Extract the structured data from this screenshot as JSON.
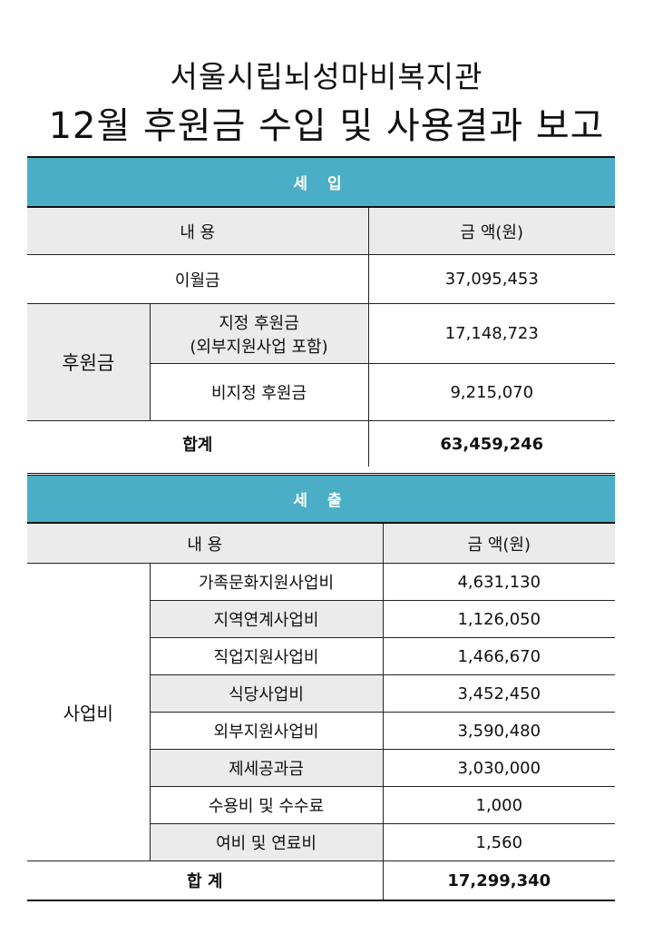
{
  "title": {
    "line1": "서울시립뇌성마비복지관",
    "line2": "12월 후원금 수입 및 사용결과 보고"
  },
  "income": {
    "banner": "세 입",
    "header_content": "내 용",
    "header_amount": "금 액(원)",
    "carryover_label": "이월금",
    "carryover_amount": "37,095,453",
    "group_label": "후원금",
    "designated_label_line1": "지정 후원금",
    "designated_label_line2": "(외부지원사업 포함)",
    "designated_amount": "17,148,723",
    "undesignated_label": "비지정 후원금",
    "undesignated_amount": "9,215,070",
    "total_label": "합계",
    "total_amount": "63,459,246"
  },
  "expense": {
    "banner": "세 출",
    "header_content": "내 용",
    "header_amount": "금 액(원)",
    "group_label": "사업비",
    "items": [
      {
        "label": "가족문화지원사업비",
        "amount": "4,631,130"
      },
      {
        "label": "지역연계사업비",
        "amount": "1,126,050"
      },
      {
        "label": "직업지원사업비",
        "amount": "1,466,670"
      },
      {
        "label": "식당사업비",
        "amount": "3,452,450"
      },
      {
        "label": "외부지원사업비",
        "amount": "3,590,480"
      },
      {
        "label": "제세공과금",
        "amount": "3,030,000"
      },
      {
        "label": "수용비 및 수수료",
        "amount": "1,000"
      },
      {
        "label": "여비 및 연료비",
        "amount": "1,560"
      }
    ],
    "total_label": "합 계",
    "total_amount": "17,299,340"
  },
  "colors": {
    "banner": "#4aaec6",
    "gray_fill": "#ebebeb"
  }
}
